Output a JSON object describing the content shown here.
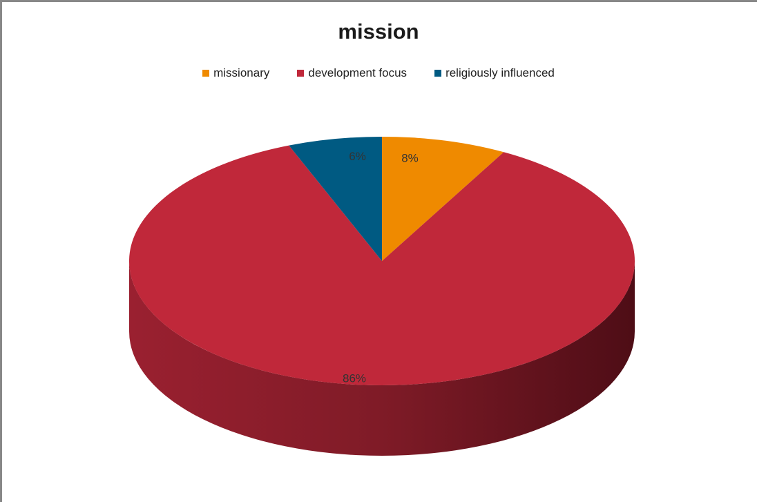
{
  "chart_data": {
    "type": "pie",
    "title": "mission",
    "legend_position": "top",
    "categories": [
      "missionary",
      "development focus",
      "religiously influenced"
    ],
    "values": [
      8,
      86,
      6
    ],
    "labels": [
      "8%",
      "86%",
      "6%"
    ],
    "colors": [
      "#ef8a00",
      "#c0283a",
      "#005a82"
    ],
    "side_colors": [
      "#b86a00",
      "#7a1a24",
      "#003a55"
    ]
  }
}
